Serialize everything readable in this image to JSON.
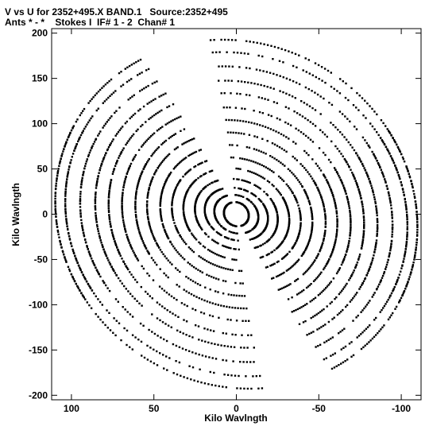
{
  "chart_data": {
    "type": "scatter",
    "title": "V vs U for 2352+495.X BAND.1   Source:2352+495",
    "subtitle": "Ants * - *    Stokes I  IF# 1 - 2  Chan# 1",
    "xlabel": "Kilo Wavlngth",
    "ylabel": "Kilo Wavlngth",
    "xlim": [
      112,
      -112
    ],
    "ylim": [
      -205,
      205
    ],
    "x_reversed": true,
    "x_ticks": [
      100,
      50,
      0,
      -50,
      -100
    ],
    "x_tick_labels": [
      "100",
      "50",
      "0",
      "-50",
      "-100"
    ],
    "y_ticks": [
      200,
      150,
      100,
      50,
      0,
      -50,
      -100,
      -150,
      -200
    ],
    "y_tick_labels": [
      "200",
      "150",
      "100",
      "50",
      "0",
      "-50",
      "-100",
      "-150",
      "-200"
    ],
    "grid": false,
    "marker_color": "#000000",
    "uv_tracks": {
      "description_of_shape": "symmetric elliptical uv-coverage tracks",
      "tracks": [
        {
          "a": 8,
          "b": 14,
          "tilt": 0.35
        },
        {
          "a": 14,
          "b": 22,
          "tilt": 0.3
        },
        {
          "a": 20,
          "b": 30,
          "tilt": 0.28
        },
        {
          "a": 26,
          "b": 40,
          "tilt": 0.25
        },
        {
          "a": 33,
          "b": 52,
          "tilt": 0.22
        },
        {
          "a": 40,
          "b": 64,
          "tilt": 0.2
        },
        {
          "a": 47,
          "b": 78,
          "tilt": 0.18
        },
        {
          "a": 55,
          "b": 92,
          "tilt": 0.16
        },
        {
          "a": 62,
          "b": 106,
          "tilt": 0.14
        },
        {
          "a": 70,
          "b": 120,
          "tilt": 0.12
        },
        {
          "a": 78,
          "b": 136,
          "tilt": 0.1
        },
        {
          "a": 86,
          "b": 150,
          "tilt": 0.08
        },
        {
          "a": 95,
          "b": 166,
          "tilt": 0.06
        },
        {
          "a": 104,
          "b": 182,
          "tilt": 0.05
        },
        {
          "a": 110,
          "b": 196,
          "tilt": 0.04
        }
      ]
    }
  }
}
